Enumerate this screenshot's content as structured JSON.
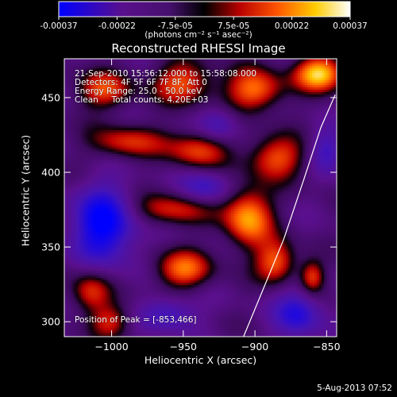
{
  "colorbar": {
    "tick_labels": [
      "-0.00037",
      "-0.00022",
      "-7.5e-05",
      "7.5e-05",
      "0.00022",
      "0.00037"
    ],
    "range": [
      -0.00037,
      0.00037
    ],
    "unit_label": "(photons cm⁻² s⁻¹ asec⁻²)"
  },
  "title": "Reconstructed RHESSI Image",
  "info_lines": {
    "time": "21-Sep-2010 15:56:12.000 to 15:58:08.000",
    "detectors": "Detectors: 4F 5F 6F 7F 8F, Att 0",
    "energy": "Energy Range: 25.0 - 50.0 keV",
    "clean": "Clean     Total counts: 4.20E+03"
  },
  "peak_label": "Position of Peak = [-853,466]",
  "footer": "5-Aug-2013 07:52",
  "chart_data": {
    "type": "heatmap",
    "title": "Reconstructed RHESSI Image",
    "xlabel": "Heliocentric X (arcsec)",
    "ylabel": "Heliocentric Y (arcsec)",
    "xlim": [
      -1033,
      -843
    ],
    "ylim": [
      290,
      476
    ],
    "xticks": [
      -1000,
      -950,
      -900,
      -850
    ],
    "yticks": [
      300,
      350,
      400,
      450
    ],
    "xtick_labels": [
      "−1000",
      "−950",
      "−900",
      "−850"
    ],
    "ytick_labels": [
      "300",
      "350",
      "400",
      "450"
    ],
    "colormap": [
      "#0000ff",
      "#4b0f96",
      "#5a0f8c",
      "#000000",
      "#cc0000",
      "#ff6600",
      "#ffcc00",
      "#ffffff"
    ],
    "peak": [
      -853,
      466
    ],
    "limb_curve": [
      [
        -908,
        290
      ],
      [
        -895,
        320
      ],
      [
        -880,
        355
      ],
      [
        -866,
        395
      ],
      [
        -854,
        430
      ],
      [
        -844,
        452
      ]
    ],
    "blobs": [
      {
        "x": -855,
        "y": 466,
        "sx": 12,
        "sy": 8,
        "a": 1.0
      },
      {
        "x": -900,
        "y": 455,
        "sx": 14,
        "sy": 10,
        "a": 0.75
      },
      {
        "x": -950,
        "y": 460,
        "sx": 15,
        "sy": 10,
        "a": 0.65
      },
      {
        "x": -1005,
        "y": 455,
        "sx": 14,
        "sy": 9,
        "a": 0.6
      },
      {
        "x": -990,
        "y": 420,
        "sx": 18,
        "sy": 8,
        "a": 0.55
      },
      {
        "x": -940,
        "y": 415,
        "sx": 15,
        "sy": 9,
        "a": 0.6
      },
      {
        "x": -885,
        "y": 410,
        "sx": 14,
        "sy": 10,
        "a": 0.65
      },
      {
        "x": -960,
        "y": 375,
        "sx": 20,
        "sy": 8,
        "a": 0.55
      },
      {
        "x": -905,
        "y": 370,
        "sx": 12,
        "sy": 14,
        "a": 0.85
      },
      {
        "x": -950,
        "y": 335,
        "sx": 14,
        "sy": 9,
        "a": 0.7
      },
      {
        "x": -885,
        "y": 340,
        "sx": 10,
        "sy": 10,
        "a": 0.7
      },
      {
        "x": -860,
        "y": 330,
        "sx": 6,
        "sy": 8,
        "a": 0.6
      },
      {
        "x": -1015,
        "y": 320,
        "sx": 10,
        "sy": 10,
        "a": 0.55
      },
      {
        "x": -1000,
        "y": 300,
        "sx": 10,
        "sy": 8,
        "a": 0.5
      },
      {
        "x": -1005,
        "y": 365,
        "sx": 16,
        "sy": 18,
        "a": -0.9
      },
      {
        "x": -935,
        "y": 390,
        "sx": 12,
        "sy": 8,
        "a": -0.5
      },
      {
        "x": -960,
        "y": 305,
        "sx": 14,
        "sy": 8,
        "a": -0.5
      },
      {
        "x": -870,
        "y": 305,
        "sx": 12,
        "sy": 12,
        "a": -0.6
      },
      {
        "x": -925,
        "y": 432,
        "sx": 10,
        "sy": 8,
        "a": -0.45
      },
      {
        "x": -850,
        "y": 415,
        "sx": 8,
        "sy": 10,
        "a": -0.45
      }
    ]
  }
}
